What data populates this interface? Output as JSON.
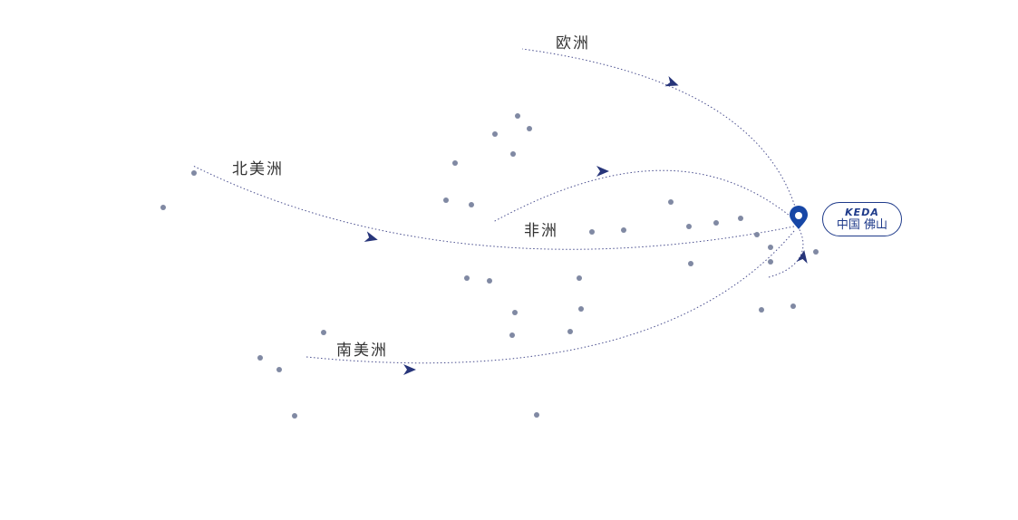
{
  "regions": {
    "europe": "欧洲",
    "north_america": "北美洲",
    "africa": "非洲",
    "south_america": "南美洲"
  },
  "origin": {
    "logo": "KEDA",
    "city": "中国 佛山",
    "icon": "map-pin-icon"
  },
  "colors": {
    "line": "#4a4f8f",
    "arrow": "#27357a",
    "dot": "#8089a3",
    "pin": "#1747a6",
    "badge": "#1e3a8a"
  }
}
